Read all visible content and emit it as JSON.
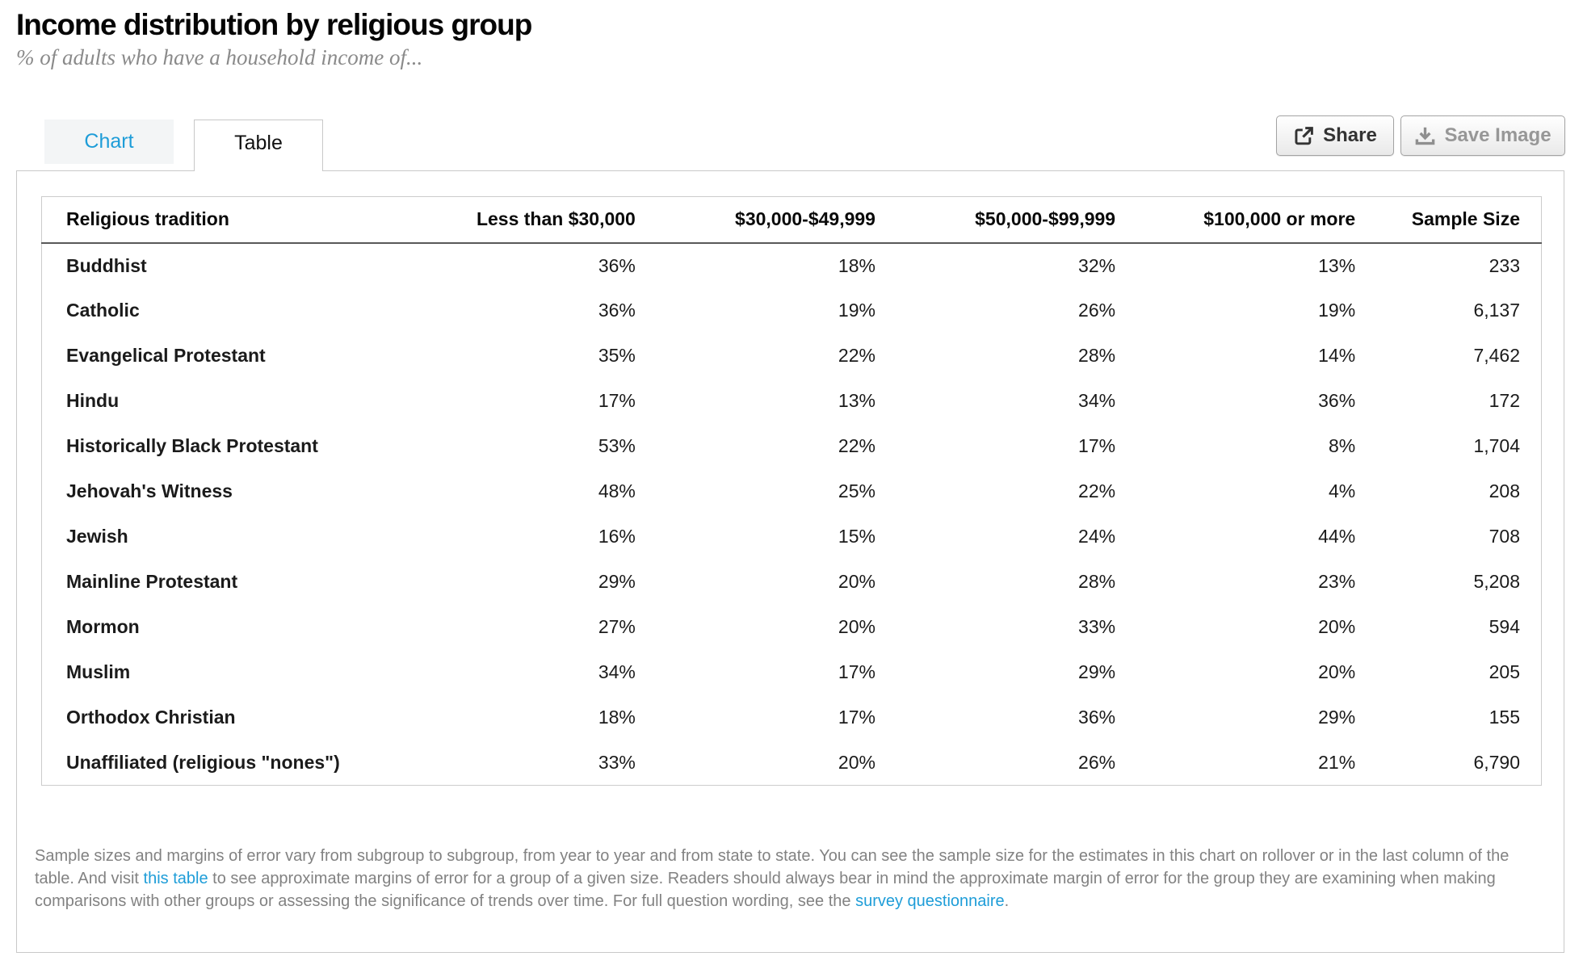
{
  "header": {
    "title": "Income distribution by religious group",
    "subtitle": "% of adults who have a household income of..."
  },
  "tabs": [
    {
      "label": "Chart",
      "active": false
    },
    {
      "label": "Table",
      "active": true
    }
  ],
  "toolbar": {
    "share_label": "Share",
    "save_image_label": "Save Image"
  },
  "colors": {
    "accent_blue": "#1e9dd8",
    "chart_tab_bg": "#f3f5f6",
    "footnote_gray": "#828282"
  },
  "chart_data": {
    "type": "table",
    "title": "Income distribution by religious group",
    "subtitle": "% of adults who have a household income of...",
    "columns": [
      "Religious tradition",
      "Less than $30,000",
      "$30,000-$49,999",
      "$50,000-$99,999",
      "$100,000 or more",
      "Sample Size"
    ],
    "rows": [
      {
        "tradition": "Buddhist",
        "values": [
          "36%",
          "18%",
          "32%",
          "13%"
        ],
        "sample_size": "233"
      },
      {
        "tradition": "Catholic",
        "values": [
          "36%",
          "19%",
          "26%",
          "19%"
        ],
        "sample_size": "6,137"
      },
      {
        "tradition": "Evangelical Protestant",
        "values": [
          "35%",
          "22%",
          "28%",
          "14%"
        ],
        "sample_size": "7,462"
      },
      {
        "tradition": "Hindu",
        "values": [
          "17%",
          "13%",
          "34%",
          "36%"
        ],
        "sample_size": "172"
      },
      {
        "tradition": "Historically Black Protestant",
        "values": [
          "53%",
          "22%",
          "17%",
          "8%"
        ],
        "sample_size": "1,704"
      },
      {
        "tradition": "Jehovah's Witness",
        "values": [
          "48%",
          "25%",
          "22%",
          "4%"
        ],
        "sample_size": "208"
      },
      {
        "tradition": "Jewish",
        "values": [
          "16%",
          "15%",
          "24%",
          "44%"
        ],
        "sample_size": "708"
      },
      {
        "tradition": "Mainline Protestant",
        "values": [
          "29%",
          "20%",
          "28%",
          "23%"
        ],
        "sample_size": "5,208"
      },
      {
        "tradition": "Mormon",
        "values": [
          "27%",
          "20%",
          "33%",
          "20%"
        ],
        "sample_size": "594"
      },
      {
        "tradition": "Muslim",
        "values": [
          "34%",
          "17%",
          "29%",
          "20%"
        ],
        "sample_size": "205"
      },
      {
        "tradition": "Orthodox Christian",
        "values": [
          "18%",
          "17%",
          "36%",
          "29%"
        ],
        "sample_size": "155"
      },
      {
        "tradition": "Unaffiliated (religious \"nones\")",
        "values": [
          "33%",
          "20%",
          "26%",
          "21%"
        ],
        "sample_size": "6,790"
      }
    ]
  },
  "footnote": {
    "part1": "Sample sizes and margins of error vary from subgroup to subgroup, from year to year and from state to state. You can see the sample size for the estimates in this chart on rollover or in the last column of the table. And visit ",
    "link1": "this table",
    "part2": " to see approximate margins of error for a group of a given size. Readers should always bear in mind the approximate margin of error for the group they are examining when making comparisons with other groups or assessing the significance of trends over time. For full question wording, see the ",
    "link2": "survey questionnaire",
    "part3": "."
  }
}
